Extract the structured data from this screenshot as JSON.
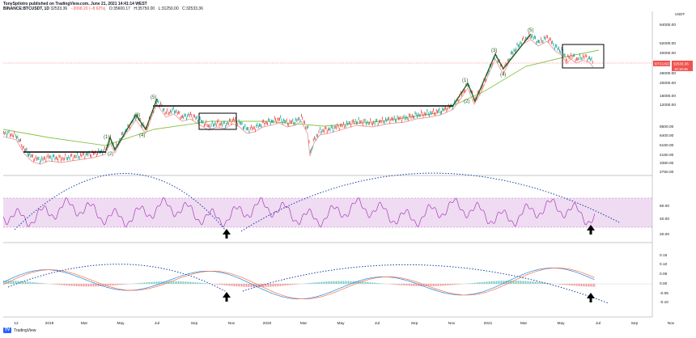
{
  "header": {
    "publisher_line": "TonySpilotro published on TradingView.com, June 21, 2021 14:41:14 WEST",
    "symbol": "BINANCE:BTCUSDT, 1D",
    "values": [
      "32533.36",
      "−3068.20 (−8.62%)",
      "O:35600.17",
      "H:35750.00",
      "L:31250.00",
      "C:32533.36"
    ]
  },
  "price_axis": {
    "labels": [
      "64000.00",
      "52000.00",
      "40000.00",
      "32533.36",
      "26000.00",
      "20000.00",
      "16000.00",
      "12000.00",
      "8500.00",
      "6400.00",
      "5150.00",
      "4150.00",
      "3350.00",
      "2750.00"
    ],
    "currency": "USDT",
    "symbol_tag": "BTCUSDT",
    "last_price": "32533.36",
    "last_time": "10:18:46"
  },
  "rsi_axis": {
    "labels": [
      "60.00",
      "40.00",
      "20.00"
    ]
  },
  "macd_axis": {
    "labels": [
      "0.15",
      "0.10",
      "0.05",
      "0.00",
      "-0.05",
      "-0.10"
    ]
  },
  "time_axis": {
    "labels": [
      "12",
      "2019",
      "Mar",
      "May",
      "Jul",
      "Sep",
      "Nov",
      "2020",
      "Mar",
      "May",
      "Jul",
      "Sep",
      "Nov",
      "2021",
      "Mar",
      "May",
      "Jul",
      "Sep",
      "Nov"
    ]
  },
  "wave_labels": [
    "(1)",
    "(2)",
    "(3)",
    "(4)",
    "(5)",
    "(1)",
    "(2)",
    "(3)",
    "(4)",
    "(5)"
  ],
  "footer": {
    "brand": "TradingView"
  },
  "colors": {
    "candle_up": "#26a69a",
    "candle_down": "#ef5350",
    "ma_fast": "#ef9a9a",
    "ma_slow": "#8bc34a",
    "rsi": "#9c27b0",
    "rsi_band": "#e1bee7",
    "macd": "#1e88e5",
    "macd_signal": "#ff7043",
    "arc": "#1a3fa0",
    "impulse": "#1b5e20"
  }
}
